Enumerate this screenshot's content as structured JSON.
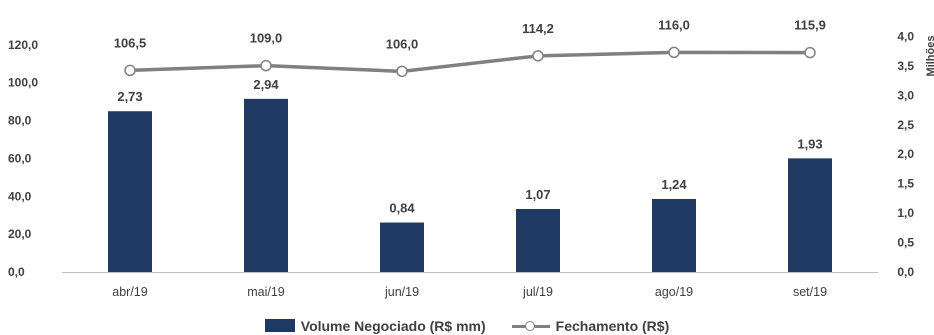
{
  "chart_data": {
    "type": "bar+line",
    "categories": [
      "abr/19",
      "mai/19",
      "jun/19",
      "jul/19",
      "ago/19",
      "set/19"
    ],
    "series": [
      {
        "name": "Volume Negociado (R$ mm)",
        "type": "bar",
        "axis": "right",
        "values": [
          2.73,
          2.94,
          0.84,
          1.07,
          1.24,
          1.93
        ],
        "labels": [
          "2,73",
          "2,94",
          "0,84",
          "1,07",
          "1,24",
          "1,93"
        ],
        "color": "#1f3864"
      },
      {
        "name": "Fechamento (R$)",
        "type": "line",
        "axis": "left",
        "values": [
          106.5,
          109.0,
          106.0,
          114.2,
          116.0,
          115.9
        ],
        "labels": [
          "106,5",
          "109,0",
          "106,0",
          "114,2",
          "116,0",
          "115,9"
        ],
        "color": "#808080"
      }
    ],
    "y_left": {
      "range": [
        0,
        140
      ],
      "ticks": [
        0,
        20,
        40,
        60,
        80,
        100,
        120
      ],
      "tick_labels": [
        "0,0",
        "20,0",
        "40,0",
        "60,0",
        "80,0",
        "100,0",
        "120,0"
      ]
    },
    "y_right": {
      "range": [
        0,
        4.5
      ],
      "ticks": [
        0,
        0.5,
        1,
        1.5,
        2,
        2.5,
        3,
        3.5,
        4
      ],
      "tick_labels": [
        "0,0",
        "0,5",
        "1,0",
        "1,5",
        "2,0",
        "2,5",
        "3,0",
        "3,5",
        "4,0"
      ],
      "title": "Milhões"
    },
    "grid": false,
    "legend_position": "bottom"
  }
}
